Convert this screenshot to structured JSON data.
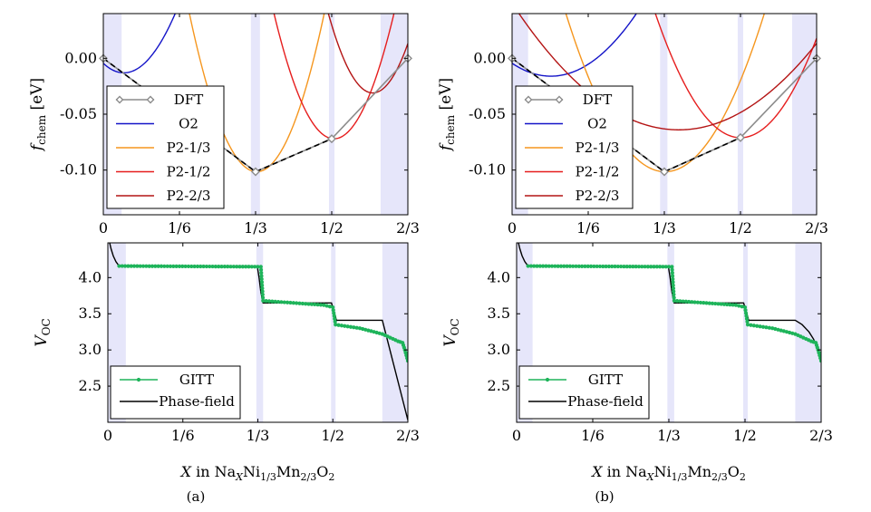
{
  "figure": {
    "caption_a": "(a)",
    "caption_b": "(b)"
  },
  "axis_labels": {
    "f_chem_sym": "f",
    "f_chem_sub": "chem",
    "f_chem_unit": "[eV]",
    "v_oc_sym": "V",
    "v_oc_sub": "OC",
    "x_prefix": "X",
    "x_in": "in",
    "formula": [
      {
        "t": "Na",
        "sub": false
      },
      {
        "t": "X",
        "sub": true,
        "italic": true
      },
      {
        "t": "Ni",
        "sub": false
      },
      {
        "t": "1/3",
        "sub": true
      },
      {
        "t": "Mn",
        "sub": false
      },
      {
        "t": "2/3",
        "sub": true
      },
      {
        "t": "O",
        "sub": false
      },
      {
        "t": "2",
        "sub": true
      }
    ]
  },
  "colors": {
    "DFT": "#8c8c8c",
    "O2": "#1414c8",
    "P2-1/3": "#f5961e",
    "P2-1/2": "#e61e1e",
    "P2-2/3": "#b41414",
    "GITT": "#1eb45a",
    "Phase-field": "#000000",
    "band": "#e6e6fa"
  },
  "chart_data": [
    {
      "id": "a-top",
      "panel": "a",
      "type": "line",
      "xlim": [
        0,
        0.6667
      ],
      "ylim": [
        -0.14,
        0.04
      ],
      "xticks": [
        [
          "0",
          0
        ],
        [
          "1/6",
          0.1667
        ],
        [
          "1/3",
          0.3333
        ],
        [
          "1/2",
          0.5
        ],
        [
          "2/3",
          0.6667
        ]
      ],
      "yticks": [
        [
          "0.00",
          0
        ],
        [
          "-0.05",
          -0.05
        ],
        [
          "-0.10",
          -0.1
        ]
      ],
      "xlabel": "",
      "ylabel": "f_chem [eV]",
      "bands": [
        [
          0,
          0.04
        ],
        [
          0.323,
          0.343
        ],
        [
          0.494,
          0.506
        ],
        [
          0.607,
          0.6667
        ]
      ],
      "series": [
        {
          "name": "DFT",
          "kind": "polyline_markers",
          "x": [
            0,
            0.3333,
            0.5,
            0.6667
          ],
          "y": [
            0,
            -0.1015,
            -0.072,
            0
          ]
        },
        {
          "name": "O2",
          "kind": "parabola",
          "a": 4.2,
          "h": 0.045,
          "k": -0.013
        },
        {
          "name": "P2-1/3",
          "kind": "parabola",
          "a": 6.5,
          "h": 0.336,
          "k": -0.1015
        },
        {
          "name": "P2-1/2",
          "kind": "parabola",
          "a": 6.5,
          "h": 0.505,
          "k": -0.072
        },
        {
          "name": "P2-2/3",
          "kind": "parabola",
          "a": 7.5,
          "h": 0.59,
          "k": -0.031
        }
      ],
      "hull_dashed": {
        "x": [
          0,
          0.3333,
          0.5
        ],
        "y": [
          0,
          -0.1015,
          -0.072
        ]
      },
      "legend": [
        "DFT",
        "O2",
        "P2-1/3",
        "P2-1/2",
        "P2-2/3"
      ]
    },
    {
      "id": "b-top",
      "panel": "b",
      "type": "line",
      "xlim": [
        0,
        0.6667
      ],
      "ylim": [
        -0.14,
        0.04
      ],
      "xticks": [
        [
          "0",
          0
        ],
        [
          "1/6",
          0.1667
        ],
        [
          "1/3",
          0.3333
        ],
        [
          "1/2",
          0.5
        ],
        [
          "2/3",
          0.6667
        ]
      ],
      "yticks": [
        [
          "0.00",
          0
        ],
        [
          "-0.05",
          -0.05
        ],
        [
          "-0.10",
          -0.1
        ]
      ],
      "xlabel": "",
      "ylabel": "f_chem [eV]",
      "bands": [
        [
          0,
          0.035
        ],
        [
          0.324,
          0.34
        ],
        [
          0.494,
          0.506
        ],
        [
          0.613,
          0.6667
        ]
      ],
      "series": [
        {
          "name": "DFT",
          "kind": "polyline_markers",
          "x": [
            0,
            0.3333,
            0.5,
            0.6667
          ],
          "y": [
            0,
            -0.1015,
            -0.071,
            0
          ]
        },
        {
          "name": "O2",
          "kind": "parabola",
          "a": 1.6,
          "h": 0.085,
          "k": -0.016
        },
        {
          "name": "P2-1/3",
          "kind": "parabola",
          "a": 3.0,
          "h": 0.335,
          "k": -0.1015
        },
        {
          "name": "P2-1/2",
          "kind": "parabola",
          "a": 3.2,
          "h": 0.5,
          "k": -0.071
        },
        {
          "name": "P2-2/3",
          "kind": "parabola",
          "a": 0.85,
          "h": 0.365,
          "k": -0.064
        }
      ],
      "hull_dashed": {
        "x": [
          0,
          0.3333,
          0.5
        ],
        "y": [
          0,
          -0.1015,
          -0.071
        ]
      },
      "legend": [
        "DFT",
        "O2",
        "P2-1/3",
        "P2-1/2",
        "P2-2/3"
      ]
    },
    {
      "id": "a-bottom",
      "panel": "a",
      "type": "line",
      "xlim": [
        0,
        0.6667
      ],
      "ylim": [
        2.0,
        4.48
      ],
      "xticks": [
        [
          "0",
          0
        ],
        [
          "1/6",
          0.1667
        ],
        [
          "1/3",
          0.3333
        ],
        [
          "1/2",
          0.5
        ],
        [
          "2/3",
          0.6667
        ]
      ],
      "yticks": [
        [
          "4.0",
          4.0
        ],
        [
          "3.5",
          3.5
        ],
        [
          "3.0",
          3.0
        ],
        [
          "2.5",
          2.5
        ]
      ],
      "xlabel": "X in NaXNi1/3Mn2/3O2",
      "ylabel": "V_OC",
      "bands": [
        [
          0,
          0.04
        ],
        [
          0.33,
          0.345
        ],
        [
          0.496,
          0.506
        ],
        [
          0.61,
          0.6667
        ]
      ],
      "series": [
        {
          "name": "Phase-field",
          "kind": "line",
          "x": [
            0.004,
            0.007,
            0.012,
            0.018,
            0.025,
            0.332,
            0.336,
            0.34,
            0.345,
            0.497,
            0.5,
            0.504,
            0.508,
            0.61,
            0.6667
          ],
          "y": [
            4.48,
            4.4,
            4.3,
            4.22,
            4.16,
            4.16,
            4.0,
            3.8,
            3.65,
            3.65,
            3.58,
            3.5,
            3.41,
            3.41,
            2.03
          ]
        },
        {
          "name": "GITT",
          "kind": "markers",
          "x": [
            0.025,
            0.34,
            0.345,
            0.48,
            0.5,
            0.506,
            0.56,
            0.61,
            0.645,
            0.655,
            0.66,
            0.6667
          ],
          "y": [
            4.16,
            4.15,
            3.68,
            3.62,
            3.59,
            3.35,
            3.3,
            3.22,
            3.12,
            3.1,
            3.0,
            2.85
          ]
        }
      ],
      "legend": [
        "GITT",
        "Phase-field"
      ]
    },
    {
      "id": "b-bottom",
      "panel": "b",
      "type": "line",
      "xlim": [
        0,
        0.6667
      ],
      "ylim": [
        2.0,
        4.48
      ],
      "xticks": [
        [
          "0",
          0
        ],
        [
          "1/6",
          0.1667
        ],
        [
          "1/3",
          0.3333
        ],
        [
          "1/2",
          0.5
        ],
        [
          "2/3",
          0.6667
        ]
      ],
      "yticks": [
        [
          "4.0",
          4.0
        ],
        [
          "3.5",
          3.5
        ],
        [
          "3.0",
          3.0
        ],
        [
          "2.5",
          2.5
        ]
      ],
      "xlabel": "X in NaXNi1/3Mn2/3O2",
      "ylabel": "V_OC",
      "bands": [
        [
          0,
          0.035
        ],
        [
          0.33,
          0.345
        ],
        [
          0.496,
          0.506
        ],
        [
          0.61,
          0.6667
        ]
      ],
      "series": [
        {
          "name": "Phase-field",
          "kind": "line",
          "x": [
            0.004,
            0.007,
            0.012,
            0.018,
            0.025,
            0.332,
            0.336,
            0.34,
            0.345,
            0.497,
            0.5,
            0.504,
            0.508,
            0.61,
            0.625,
            0.64,
            0.65,
            0.66,
            0.6667
          ],
          "y": [
            4.48,
            4.4,
            4.3,
            4.22,
            4.16,
            4.16,
            4.0,
            3.8,
            3.65,
            3.65,
            3.58,
            3.5,
            3.41,
            3.41,
            3.35,
            3.25,
            3.15,
            3.02,
            2.85
          ]
        },
        {
          "name": "GITT",
          "kind": "markers",
          "x": [
            0.025,
            0.34,
            0.345,
            0.48,
            0.5,
            0.506,
            0.56,
            0.61,
            0.645,
            0.655,
            0.66,
            0.6667
          ],
          "y": [
            4.16,
            4.15,
            3.68,
            3.62,
            3.59,
            3.35,
            3.3,
            3.22,
            3.12,
            3.1,
            3.0,
            2.85
          ]
        }
      ],
      "legend": [
        "GITT",
        "Phase-field"
      ]
    }
  ]
}
